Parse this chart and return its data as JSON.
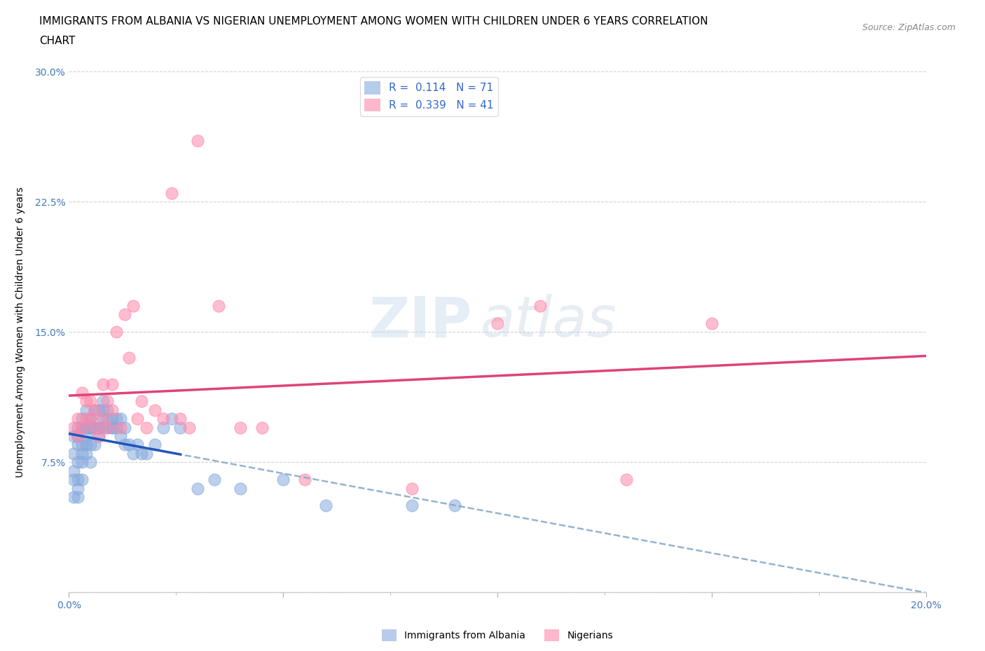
{
  "title_line1": "IMMIGRANTS FROM ALBANIA VS NIGERIAN UNEMPLOYMENT AMONG WOMEN WITH CHILDREN UNDER 6 YEARS CORRELATION",
  "title_line2": "CHART",
  "source_text": "Source: ZipAtlas.com",
  "ylabel": "Unemployment Among Women with Children Under 6 years",
  "xlim": [
    0.0,
    0.2
  ],
  "ylim": [
    0.0,
    0.3
  ],
  "albania_color": "#88aadd",
  "nigeria_color": "#ff88aa",
  "albania_line_color": "#2255bb",
  "nigeria_line_color": "#dd4477",
  "dashed_color": "#88aacc",
  "albania_R": 0.114,
  "albania_N": 71,
  "nigeria_R": 0.339,
  "nigeria_N": 41,
  "watermark_zip": "ZIP",
  "watermark_atlas": "atlas",
  "albania_x": [
    0.001,
    0.001,
    0.001,
    0.001,
    0.001,
    0.002,
    0.002,
    0.002,
    0.002,
    0.002,
    0.002,
    0.002,
    0.003,
    0.003,
    0.003,
    0.003,
    0.003,
    0.003,
    0.003,
    0.004,
    0.004,
    0.004,
    0.004,
    0.004,
    0.004,
    0.005,
    0.005,
    0.005,
    0.005,
    0.005,
    0.005,
    0.006,
    0.006,
    0.006,
    0.006,
    0.007,
    0.007,
    0.007,
    0.007,
    0.008,
    0.008,
    0.008,
    0.008,
    0.009,
    0.009,
    0.009,
    0.01,
    0.01,
    0.01,
    0.011,
    0.011,
    0.012,
    0.012,
    0.013,
    0.013,
    0.014,
    0.015,
    0.016,
    0.017,
    0.018,
    0.02,
    0.022,
    0.024,
    0.026,
    0.03,
    0.034,
    0.04,
    0.05,
    0.06,
    0.08,
    0.09
  ],
  "albania_y": [
    0.07,
    0.065,
    0.08,
    0.09,
    0.055,
    0.065,
    0.075,
    0.09,
    0.085,
    0.095,
    0.055,
    0.06,
    0.1,
    0.085,
    0.08,
    0.065,
    0.075,
    0.095,
    0.095,
    0.095,
    0.085,
    0.08,
    0.09,
    0.105,
    0.095,
    0.1,
    0.085,
    0.095,
    0.1,
    0.075,
    0.095,
    0.095,
    0.105,
    0.085,
    0.095,
    0.095,
    0.105,
    0.09,
    0.095,
    0.11,
    0.095,
    0.1,
    0.105,
    0.105,
    0.1,
    0.095,
    0.095,
    0.095,
    0.1,
    0.1,
    0.095,
    0.1,
    0.09,
    0.085,
    0.095,
    0.085,
    0.08,
    0.085,
    0.08,
    0.08,
    0.085,
    0.095,
    0.1,
    0.095,
    0.06,
    0.065,
    0.06,
    0.065,
    0.05,
    0.05,
    0.05
  ],
  "nigeria_x": [
    0.001,
    0.002,
    0.002,
    0.003,
    0.003,
    0.004,
    0.004,
    0.005,
    0.005,
    0.006,
    0.006,
    0.007,
    0.008,
    0.008,
    0.009,
    0.009,
    0.01,
    0.01,
    0.011,
    0.012,
    0.013,
    0.014,
    0.015,
    0.016,
    0.017,
    0.018,
    0.02,
    0.022,
    0.024,
    0.026,
    0.028,
    0.03,
    0.035,
    0.04,
    0.045,
    0.055,
    0.08,
    0.1,
    0.11,
    0.13,
    0.15
  ],
  "nigeria_y": [
    0.095,
    0.09,
    0.1,
    0.095,
    0.115,
    0.11,
    0.1,
    0.1,
    0.11,
    0.105,
    0.095,
    0.09,
    0.12,
    0.1,
    0.11,
    0.095,
    0.105,
    0.12,
    0.15,
    0.095,
    0.16,
    0.135,
    0.165,
    0.1,
    0.11,
    0.095,
    0.105,
    0.1,
    0.23,
    0.1,
    0.095,
    0.26,
    0.165,
    0.095,
    0.095,
    0.065,
    0.06,
    0.155,
    0.165,
    0.065,
    0.155
  ]
}
